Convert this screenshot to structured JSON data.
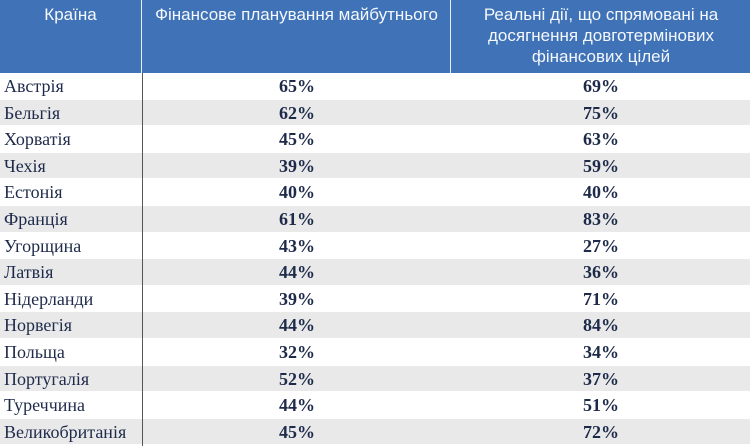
{
  "table": {
    "headers": [
      "Країна",
      "Фінансове планування майбутнього",
      "Реальні дії, що спрямовані на досягнення довготермінових фінансових цілей"
    ],
    "header_lines": {
      "col2": [
        "Реальні дії, що спрямовані на",
        "досягнення довготермінових",
        "фінансових цілей"
      ]
    },
    "colors": {
      "header_bg": "#3f72b7",
      "header_text": "#f5f8fc",
      "row_alt_bg": "#e9e9e9",
      "text": "#1d2a4a"
    },
    "rows": [
      {
        "country": "Австрія",
        "planning": "65%",
        "actions": "69%"
      },
      {
        "country": "Бельгія",
        "planning": "62%",
        "actions": "75%"
      },
      {
        "country": "Хорватія",
        "planning": "45%",
        "actions": "63%"
      },
      {
        "country": "Чехія",
        "planning": "39%",
        "actions": "59%"
      },
      {
        "country": "Естонія",
        "planning": "40%",
        "actions": "40%"
      },
      {
        "country": "Франція",
        "planning": "61%",
        "actions": "83%"
      },
      {
        "country": "Угорщина",
        "planning": "43%",
        "actions": "27%"
      },
      {
        "country": "Латвія",
        "planning": "44%",
        "actions": "36%"
      },
      {
        "country": "Нідерланди",
        "planning": "39%",
        "actions": "71%"
      },
      {
        "country": "Норвегія",
        "planning": "44%",
        "actions": "84%"
      },
      {
        "country": "Польща",
        "planning": "32%",
        "actions": "34%"
      },
      {
        "country": "Португалія",
        "planning": "52%",
        "actions": "37%"
      },
      {
        "country": "Туреччина",
        "planning": "44%",
        "actions": "51%"
      },
      {
        "country": "Великобританія",
        "planning": "45%",
        "actions": "72%"
      }
    ]
  }
}
